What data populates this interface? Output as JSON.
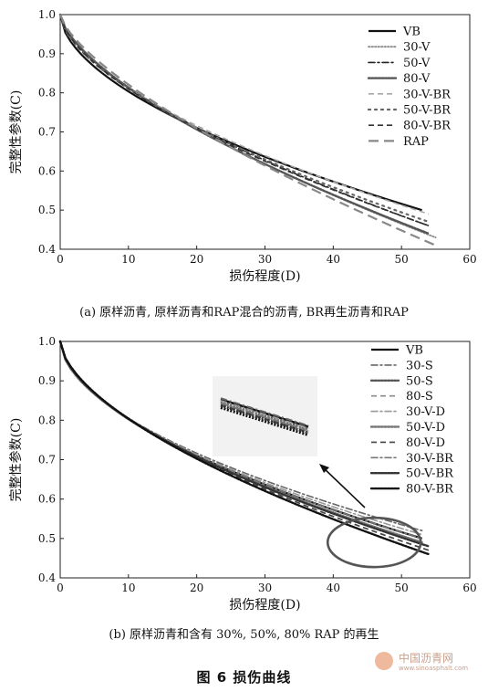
{
  "figure_title": "图 6  损伤曲线",
  "watermark": {
    "text": "中国沥青网",
    "url": "www.sinoasphalt.com"
  },
  "chart_data": [
    {
      "type": "line",
      "caption": "(a) 原样沥青, 原样沥青和RAP混合的沥青, BR再生沥青和RAP",
      "xlabel": "损伤程度(D)",
      "ylabel": "完整性参数(C)",
      "xlim": [
        0,
        60
      ],
      "ylim": [
        0.4,
        1.0
      ],
      "xticks": [
        0,
        10,
        20,
        30,
        40,
        50,
        60
      ],
      "yticks": [
        0.4,
        0.5,
        0.6,
        0.7,
        0.8,
        0.9,
        1.0
      ],
      "legend_position": "top-right",
      "series": [
        {
          "name": "VB",
          "x_end": 53,
          "y_end": 0.5,
          "k": 0.56,
          "style": "solid",
          "color": "#111111"
        },
        {
          "name": "30-V",
          "x_end": 55,
          "y_end": 0.43,
          "k": 0.66,
          "style": "dotted",
          "color": "#8a8a8a"
        },
        {
          "name": "50-V",
          "x_end": 54,
          "y_end": 0.46,
          "k": 0.63,
          "style": "dashdot",
          "color": "#222222"
        },
        {
          "name": "80-V",
          "x_end": 54,
          "y_end": 0.44,
          "k": 0.65,
          "style": "dotted-bold",
          "color": "#555555"
        },
        {
          "name": "30-V-BR",
          "x_end": 54,
          "y_end": 0.49,
          "k": 0.59,
          "style": "dashed",
          "color": "#a8a8a8"
        },
        {
          "name": "50-V-BR",
          "x_end": 54,
          "y_end": 0.47,
          "k": 0.61,
          "style": "sparse-dot",
          "color": "#666666"
        },
        {
          "name": "80-V-BR",
          "x_end": 54,
          "y_end": 0.46,
          "k": 0.62,
          "style": "dashed",
          "color": "#333333"
        },
        {
          "name": "RAP",
          "x_end": 55,
          "y_end": 0.41,
          "k": 0.7,
          "style": "long-dash",
          "color": "#888888"
        }
      ]
    },
    {
      "type": "line",
      "caption": "(b) 原样沥青和含有 30%, 50%, 80% RAP 的再生",
      "xlabel": "损伤程度(D)",
      "ylabel": "完整性参数(C)",
      "xlim": [
        0,
        60
      ],
      "ylim": [
        0.4,
        1.0
      ],
      "xticks": [
        0,
        10,
        20,
        30,
        40,
        50,
        60
      ],
      "yticks": [
        0.4,
        0.5,
        0.6,
        0.7,
        0.8,
        0.9,
        1.0
      ],
      "legend_position": "top-right",
      "series": [
        {
          "name": "VB",
          "x_end": 53,
          "y_end": 0.5,
          "k": 0.56,
          "style": "solid",
          "color": "#111111"
        },
        {
          "name": "30-S",
          "x_end": 53,
          "y_end": 0.52,
          "k": 0.54,
          "style": "dashdot",
          "color": "#666666"
        },
        {
          "name": "50-S",
          "x_end": 53,
          "y_end": 0.49,
          "k": 0.57,
          "style": "dotted-bold",
          "color": "#555555"
        },
        {
          "name": "80-S",
          "x_end": 54,
          "y_end": 0.47,
          "k": 0.59,
          "style": "dashed",
          "color": "#8a8a8a"
        },
        {
          "name": "30-V-D",
          "x_end": 53,
          "y_end": 0.51,
          "k": 0.55,
          "style": "dashdot",
          "color": "#999999"
        },
        {
          "name": "50-V-D",
          "x_end": 53,
          "y_end": 0.49,
          "k": 0.57,
          "style": "dotted-bold",
          "color": "#777777"
        },
        {
          "name": "80-V-D",
          "x_end": 54,
          "y_end": 0.47,
          "k": 0.59,
          "style": "dashed",
          "color": "#444444"
        },
        {
          "name": "30-V-BR",
          "x_end": 53,
          "y_end": 0.5,
          "k": 0.56,
          "style": "dashdot",
          "color": "#777777"
        },
        {
          "name": "50-V-BR",
          "x_end": 54,
          "y_end": 0.48,
          "k": 0.58,
          "style": "dotted-bold",
          "color": "#333333"
        },
        {
          "name": "80-V-BR",
          "x_end": 54,
          "y_end": 0.46,
          "k": 0.6,
          "style": "dotted-bold",
          "color": "#111111"
        }
      ],
      "annotation": {
        "type": "zoom-inset",
        "ellipse_center": [
          46,
          0.49
        ],
        "arrow_to": "inset"
      }
    }
  ]
}
